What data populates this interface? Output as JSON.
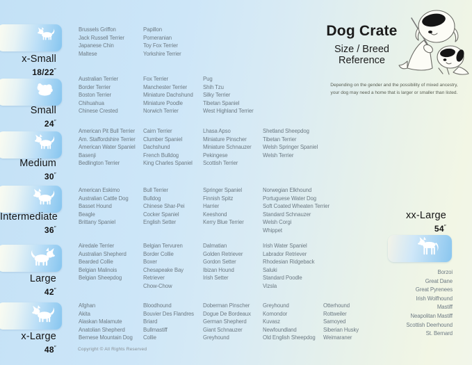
{
  "header": {
    "title": "Dog Crate",
    "subtitle_line1": "Size / Breed",
    "subtitle_line2": "Reference",
    "disclaimer_line1": "Depending on the gender and the possibility of mixed ancestry,",
    "disclaimer_line2": "your dog may need  a home that is larger or smaller than listed.",
    "mascot_icon": "dog-teacher-with-puppy-illustration"
  },
  "footer": {
    "copyright": "Copyright © All Rights Reserved"
  },
  "inch_mark": "″",
  "colors": {
    "background_blue": "#c3e1f6",
    "background_cream": "#f2f6e5",
    "tile_blue": "#86c5ef",
    "tile_cream": "#fdfdf0",
    "breed_text": "#6d7a83",
    "label_text": "#141414",
    "silhouette": "#ffffff"
  },
  "chart_data": {
    "type": "table",
    "title": "Dog Crate",
    "subtitle": "Size / Breed Reference",
    "sizes": [
      {
        "id": "xsmall",
        "name": "x-Small",
        "crate_size": "18/22",
        "icon": "toy-dog-icon",
        "side": "left",
        "breed_columns": [
          [
            "Brussels Griffon",
            "Jack Russell Terrier",
            "Japanese Chin",
            "Maltese"
          ],
          [
            "Papillon",
            "Pomeranian",
            "Toy Fox Terrier",
            "Yorkshire Terrier"
          ]
        ]
      },
      {
        "id": "small",
        "name": "Small",
        "crate_size": "24",
        "icon": "shih-tzu-dog-icon",
        "side": "left",
        "breed_columns": [
          [
            "Australian Terrier",
            "Border Terrier",
            "Boston Terrier",
            "Chihuahua",
            "Chinese Crested"
          ],
          [
            "Fox Terrier",
            "Manchester Terrier",
            "Miniature Dachshund",
            "Miniature Poodle",
            "Norwich Terrier"
          ],
          [
            "Pug",
            "Shih Tzu",
            "Silky Terrier",
            "Tibetan Spaniel",
            "West Highland Terrier"
          ]
        ]
      },
      {
        "id": "medium",
        "name": "Medium",
        "crate_size": "30",
        "icon": "terrier-dog-icon",
        "side": "left",
        "breed_columns": [
          [
            "American Pit Bull Terrier",
            "Am. Staffordshire Terrier",
            "American Water Spaniel",
            "Basenji",
            "Bedlington Terrier"
          ],
          [
            "Cairn Terrier",
            "Clumber Spaniel",
            "Dachshund",
            "French Bulldog",
            "King Charles Spaniel"
          ],
          [
            "Lhasa Apso",
            "Miniature Pinscher",
            "Miniature Schnauzer",
            "Pekingese",
            "Scottish Terrier"
          ],
          [
            "Shetland Sheepdog",
            "Tibetan Terrier",
            "Welsh Springer Spaniel",
            "Welsh Terrier"
          ]
        ]
      },
      {
        "id": "intermediate",
        "name": "Intermediate",
        "crate_size": "36",
        "icon": "spaniel-dog-icon",
        "side": "left",
        "breed_columns": [
          [
            "American Eskimo",
            "Australian Cattle Dog",
            "Basset Hound",
            "Beagle",
            "Brittany Spaniel"
          ],
          [
            "Bull Terrier",
            "Bulldog",
            "Chinese Shar-Pei",
            "Cocker Spaniel",
            "English Setter"
          ],
          [
            "Springer Spaniel",
            "Finnish Spitz",
            "Harrier",
            "Keeshond",
            "Kerry Blue Terrier"
          ],
          [
            "Norwegian Elkhound",
            "Portuguese Water Dog",
            "Soft Coated Wheaten Terrier",
            "Standard Schnauzer",
            "Welsh Corgi",
            "Whippet"
          ]
        ]
      },
      {
        "id": "large",
        "name": "Large",
        "crate_size": "42",
        "icon": "retriever-dog-icon",
        "side": "left",
        "breed_columns": [
          [
            "Airedale Terrier",
            "Australian Shepherd",
            "Bearded Collie",
            "Belgian Malinois",
            "Belgian Sheepdog"
          ],
          [
            "Belgian Tervuren",
            "Border Collie",
            "Boxer",
            "Chesapeake Bay Retriever",
            "Chow-Chow"
          ],
          [
            "Dalmatian",
            "Golden Retriever",
            "Gordon Setter",
            "Ibizan Hound",
            "Irish Setter"
          ],
          [
            "Irish Water Spaniel",
            "Labrador Retriever",
            "Rhodesian Ridgeback",
            "Saluki",
            "Standard Poodle",
            "Vizsla"
          ]
        ]
      },
      {
        "id": "xlarge",
        "name": "x-Large",
        "crate_size": "48",
        "icon": "akita-dog-icon",
        "side": "left",
        "breed_columns": [
          [
            "Afghan",
            "Akita",
            "Alaskan Malamute",
            "Anatolian Shepherd",
            "Bernese Mountain Dog"
          ],
          [
            "Bloodhound",
            "Bouvier Des Flandres",
            "Briard",
            "Bullmastiff",
            "Collie"
          ],
          [
            "Doberman Pinscher",
            "Dogue De Bordeaux",
            "German Shepherd",
            "Giant Schnauzer",
            "Greyhound"
          ],
          [
            "Greyhound",
            "Komondor",
            "Kuvasz",
            "Newfoundland",
            "Old English Sheepdog"
          ],
          [
            "Otterhound",
            "Rottweiler",
            "Samoyed",
            "Siberian Husky",
            "Weimaraner"
          ]
        ]
      },
      {
        "id": "xxlarge",
        "name": "xx-Large",
        "crate_size": "54",
        "icon": "great-dane-dog-icon",
        "side": "right",
        "breed_columns": [
          [
            "Borzoi",
            "Great Dane",
            "Great Pyrenees",
            "Irish Wolfhound",
            "Mastiff",
            "Neapolitan Mastiff",
            "Scottish Deerhound",
            "St. Bernard"
          ]
        ]
      }
    ]
  }
}
